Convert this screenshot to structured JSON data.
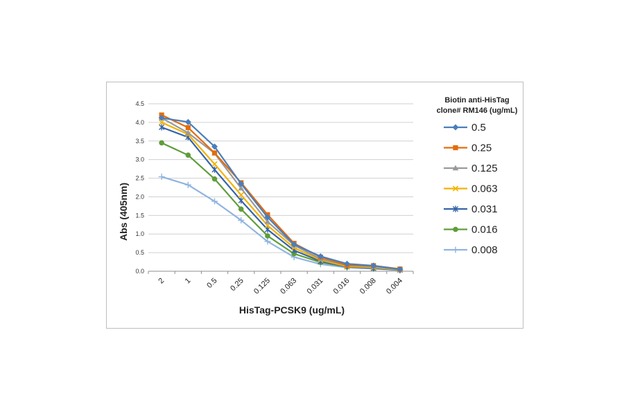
{
  "chart_data": {
    "type": "line",
    "title": "",
    "xlabel": "HisTag-PCSK9 (ug/mL)",
    "ylabel": "Abs (405nm)",
    "ylim": [
      0,
      4.5
    ],
    "yticks": [
      "0.0",
      "0.5",
      "1.0",
      "1.5",
      "2.0",
      "2.5",
      "3.0",
      "3.5",
      "4.0",
      "4.5"
    ],
    "categories": [
      "2",
      "1",
      "0.5",
      "0.25",
      "0.125",
      "0.063",
      "0.031",
      "0.016",
      "0.008",
      "0.004"
    ],
    "grid": true,
    "legend": {
      "placement": "right",
      "title_line1": "Biotin anti-HisTag",
      "title_line2": "clone# RM146 (ug/mL)"
    },
    "series": [
      {
        "name": "0.5",
        "color": "#4a7ebb",
        "marker": "diamond",
        "values": [
          4.12,
          4.01,
          3.35,
          2.35,
          1.45,
          0.72,
          0.4,
          0.2,
          0.15,
          0.05
        ]
      },
      {
        "name": "0.25",
        "color": "#e46c0a",
        "marker": "square",
        "values": [
          4.2,
          3.86,
          3.18,
          2.38,
          1.52,
          0.75,
          0.38,
          0.16,
          0.15,
          0.06
        ]
      },
      {
        "name": "0.125",
        "color": "#999999",
        "marker": "triangle",
        "values": [
          4.12,
          3.72,
          3.17,
          2.23,
          1.33,
          0.7,
          0.33,
          0.16,
          0.12,
          0.05
        ]
      },
      {
        "name": "0.063",
        "color": "#f2b300",
        "marker": "x",
        "values": [
          4.0,
          3.68,
          2.88,
          2.05,
          1.23,
          0.63,
          0.3,
          0.13,
          0.1,
          0.04
        ]
      },
      {
        "name": "0.031",
        "color": "#3464a8",
        "marker": "star",
        "values": [
          3.87,
          3.6,
          2.73,
          1.9,
          1.12,
          0.56,
          0.27,
          0.12,
          0.08,
          0.03
        ]
      },
      {
        "name": "0.016",
        "color": "#5f9d3a",
        "marker": "circle",
        "values": [
          3.45,
          3.12,
          2.48,
          1.67,
          0.95,
          0.47,
          0.24,
          0.12,
          0.08,
          0.04
        ]
      },
      {
        "name": "0.008",
        "color": "#8fb4e0",
        "marker": "plus",
        "values": [
          2.54,
          2.32,
          1.88,
          1.37,
          0.8,
          0.38,
          0.19,
          0.1,
          0.07,
          0.03
        ]
      }
    ]
  }
}
